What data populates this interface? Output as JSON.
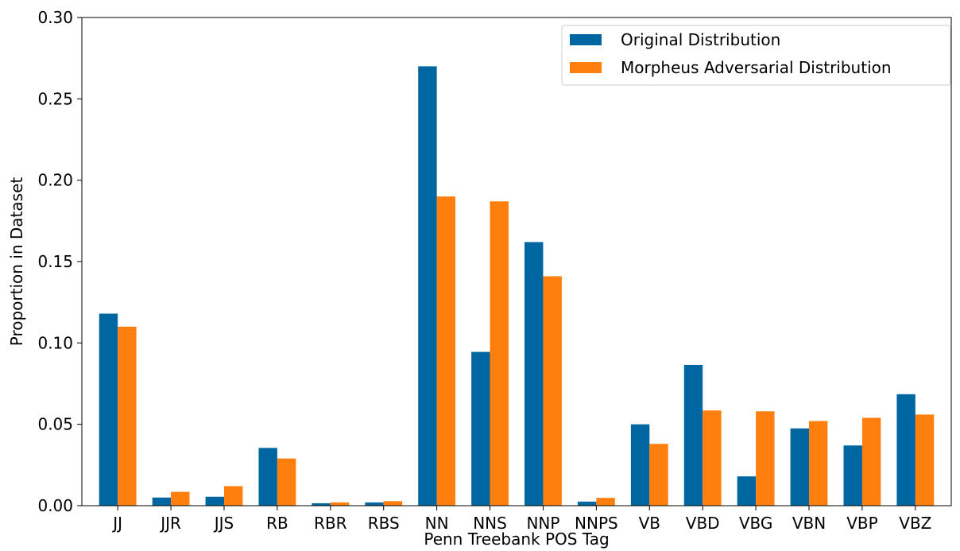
{
  "chart_data": {
    "type": "bar",
    "title": "",
    "xlabel": "Penn Treebank POS Tag",
    "ylabel": "Proportion in Dataset",
    "ylim": [
      0,
      0.3
    ],
    "yticks": [
      "0.00",
      "0.05",
      "0.10",
      "0.15",
      "0.20",
      "0.25",
      "0.30"
    ],
    "categories": [
      "JJ",
      "JJR",
      "JJS",
      "RB",
      "RBR",
      "RBS",
      "NN",
      "NNS",
      "NNP",
      "NNPS",
      "VB",
      "VBD",
      "VBG",
      "VBN",
      "VBP",
      "VBZ"
    ],
    "series": [
      {
        "name": "Original Distribution",
        "color": "#0066a1",
        "values": [
          0.118,
          0.005,
          0.0055,
          0.0355,
          0.0015,
          0.002,
          0.27,
          0.0945,
          0.162,
          0.0025,
          0.05,
          0.0865,
          0.018,
          0.0475,
          0.037,
          0.0685
        ]
      },
      {
        "name": "Morpheus Adversarial Distribution",
        "color": "#ff7f0e",
        "values": [
          0.11,
          0.0085,
          0.012,
          0.029,
          0.002,
          0.0028,
          0.19,
          0.187,
          0.141,
          0.0048,
          0.038,
          0.0585,
          0.058,
          0.052,
          0.054,
          0.056
        ]
      }
    ],
    "grid": false,
    "legend_position": "top-right"
  }
}
